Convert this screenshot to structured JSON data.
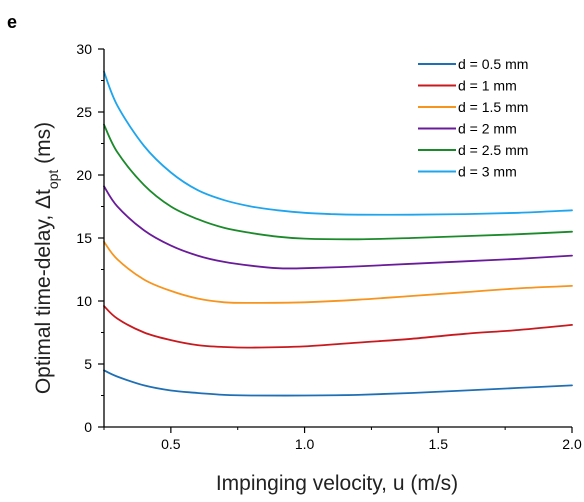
{
  "panel_label": "e",
  "chart_data": {
    "type": "line",
    "xlabel": "Impinging velocity, u (m/s)",
    "ylabel_main": "Optimal time-delay, Δt",
    "ylabel_sub": "opt",
    "ylabel_unit": " (ms)",
    "xlim": [
      0.25,
      2.0
    ],
    "ylim": [
      0,
      30
    ],
    "x_ticks": [
      0.5,
      1.0,
      1.5,
      2.0
    ],
    "x_tick_labels": [
      "0.5",
      "1.0",
      "1.5",
      "2.0"
    ],
    "y_ticks": [
      0,
      5,
      10,
      15,
      20,
      25,
      30
    ],
    "y_tick_labels": [
      "0",
      "5",
      "10",
      "15",
      "20",
      "25",
      "30"
    ],
    "grid": false,
    "legend_position": "top-right",
    "series": [
      {
        "name": "d = 0.5 mm",
        "color": "#1f6fb5",
        "x": [
          0.25,
          0.3,
          0.4,
          0.5,
          0.6,
          0.7,
          0.8,
          1.0,
          1.2,
          1.4,
          1.6,
          1.8,
          2.0
        ],
        "y": [
          4.5,
          4.0,
          3.3,
          2.9,
          2.7,
          2.55,
          2.5,
          2.5,
          2.55,
          2.7,
          2.9,
          3.1,
          3.3
        ]
      },
      {
        "name": "d = 1 mm",
        "color": "#c8191e",
        "x": [
          0.25,
          0.3,
          0.4,
          0.5,
          0.6,
          0.7,
          0.8,
          1.0,
          1.2,
          1.4,
          1.6,
          1.8,
          2.0
        ],
        "y": [
          9.6,
          8.6,
          7.5,
          6.9,
          6.5,
          6.35,
          6.3,
          6.4,
          6.7,
          7.0,
          7.4,
          7.7,
          8.1
        ]
      },
      {
        "name": "d = 1.5 mm",
        "color": "#f7941d",
        "x": [
          0.25,
          0.3,
          0.4,
          0.5,
          0.6,
          0.7,
          0.8,
          1.0,
          1.2,
          1.4,
          1.6,
          1.8,
          2.0
        ],
        "y": [
          14.7,
          13.3,
          11.7,
          10.8,
          10.2,
          9.9,
          9.85,
          9.9,
          10.1,
          10.4,
          10.7,
          11.0,
          11.2
        ]
      },
      {
        "name": "d = 2 mm",
        "color": "#6a1b9a",
        "x": [
          0.25,
          0.3,
          0.4,
          0.5,
          0.6,
          0.7,
          0.8,
          0.9,
          1.0,
          1.2,
          1.4,
          1.6,
          1.8,
          2.0
        ],
        "y": [
          19.1,
          17.5,
          15.6,
          14.4,
          13.6,
          13.1,
          12.8,
          12.6,
          12.6,
          12.75,
          12.95,
          13.15,
          13.35,
          13.6
        ]
      },
      {
        "name": "d = 2.5 mm",
        "color": "#1a8a2a",
        "x": [
          0.25,
          0.3,
          0.4,
          0.5,
          0.6,
          0.7,
          0.8,
          0.9,
          1.0,
          1.2,
          1.4,
          1.6,
          1.8,
          2.0
        ],
        "y": [
          24.0,
          21.8,
          19.2,
          17.5,
          16.5,
          15.8,
          15.4,
          15.1,
          14.95,
          14.9,
          15.0,
          15.15,
          15.3,
          15.5
        ]
      },
      {
        "name": "d = 3 mm",
        "color": "#1ea5ee",
        "x": [
          0.25,
          0.3,
          0.4,
          0.5,
          0.6,
          0.7,
          0.8,
          0.9,
          1.0,
          1.1,
          1.2,
          1.4,
          1.6,
          1.8,
          2.0
        ],
        "y": [
          28.2,
          25.5,
          22.3,
          20.2,
          18.8,
          18.0,
          17.5,
          17.2,
          17.0,
          16.9,
          16.85,
          16.85,
          16.9,
          17.0,
          17.2
        ]
      }
    ]
  }
}
